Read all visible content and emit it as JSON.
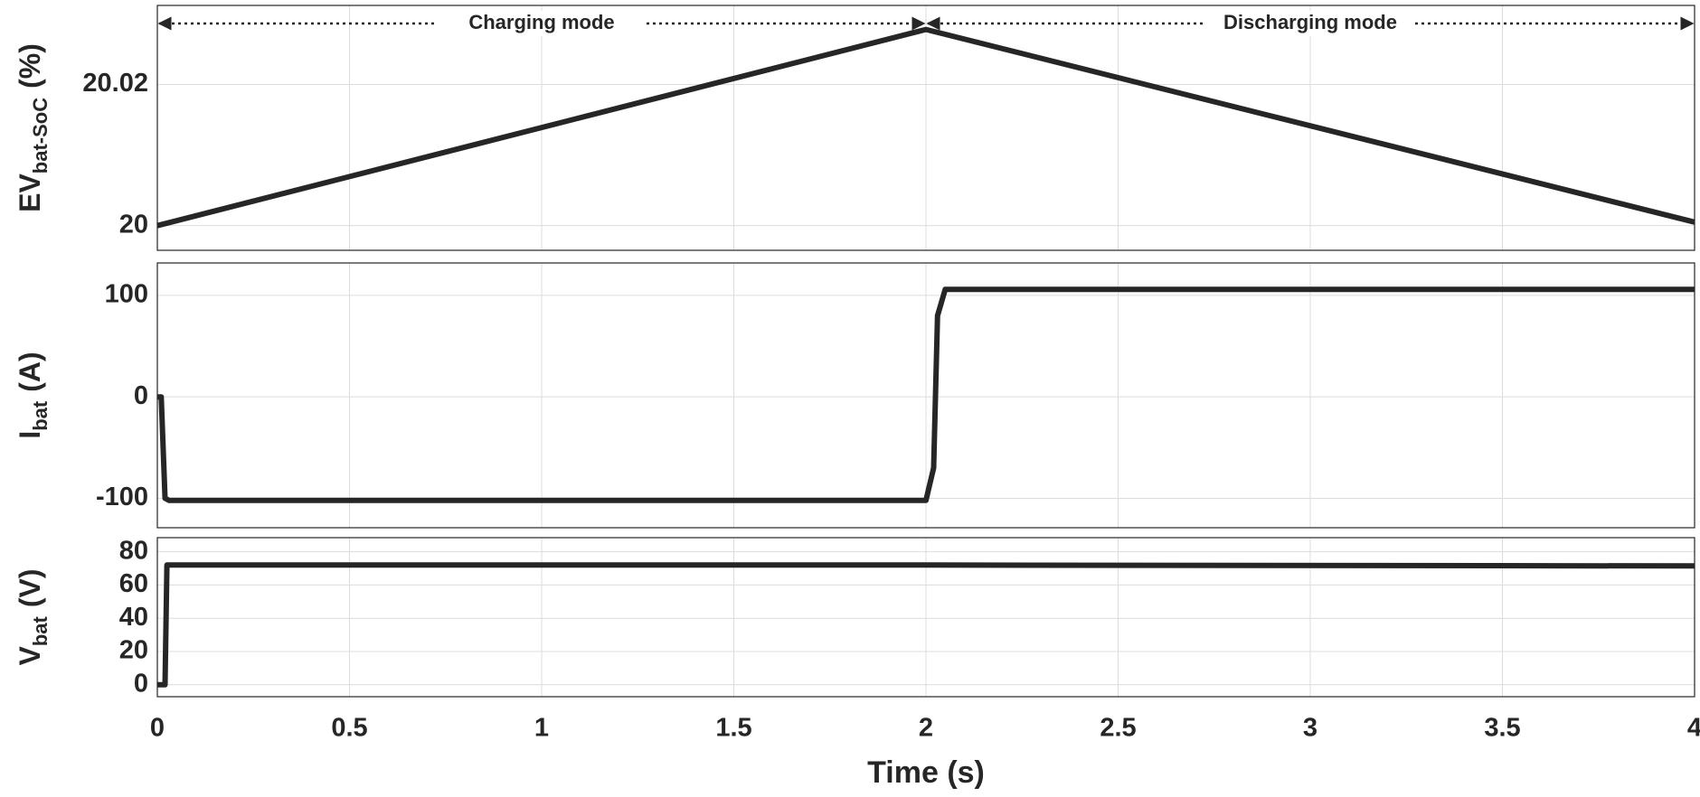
{
  "chart_data": [
    {
      "type": "line",
      "ylabel": {
        "base": "EV",
        "sub": "bat-SoC",
        "unit": "(%)"
      },
      "x": [
        0,
        2,
        4
      ],
      "values": [
        20,
        20.0278,
        20.0005
      ],
      "color": "#262626",
      "xlim": [
        0,
        4
      ],
      "xticks": [
        0,
        0.5,
        1,
        1.5,
        2,
        2.5,
        3,
        3.5,
        4
      ],
      "show_xtick_labels": false,
      "ylim": [
        19.9965,
        20.0312
      ],
      "yticks": [
        20,
        {
          "value": 20.02,
          "label": "20.02"
        }
      ],
      "grid": true,
      "annotations": [
        {
          "text": "Charging mode",
          "x": [
            0,
            2
          ]
        },
        {
          "text": "Discharging mode",
          "x": [
            2,
            4
          ]
        }
      ]
    },
    {
      "type": "line",
      "ylabel": {
        "base": "I",
        "sub": "bat",
        "unit": "(A)"
      },
      "x": [
        0,
        0.01,
        0.02,
        0.03,
        2.0,
        2.02,
        2.03,
        2.05,
        4
      ],
      "values": [
        0,
        0,
        -100,
        -102,
        -102,
        -70,
        80,
        106,
        106
      ],
      "color": "#262626",
      "xlim": [
        0,
        4
      ],
      "xticks": [
        0,
        0.5,
        1,
        1.5,
        2,
        2.5,
        3,
        3.5,
        4
      ],
      "show_xtick_labels": false,
      "ylim": [
        -129,
        132
      ],
      "yticks": [
        -100,
        0,
        100
      ],
      "grid": true
    },
    {
      "type": "line",
      "ylabel": {
        "base": "V",
        "sub": "bat",
        "unit": "(V)"
      },
      "x": [
        0,
        0.02,
        0.025,
        2,
        4
      ],
      "values": [
        0,
        0,
        72,
        72,
        71.5
      ],
      "color": "#262626",
      "xlim": [
        0,
        4
      ],
      "xticks": [
        0,
        0.5,
        1,
        1.5,
        2,
        2.5,
        3,
        3.5,
        4
      ],
      "show_xtick_labels": true,
      "xlabel": "Time (s)",
      "ylim": [
        -7.2,
        88.5
      ],
      "yticks": [
        0,
        20,
        40,
        60,
        80
      ],
      "grid": true
    }
  ]
}
